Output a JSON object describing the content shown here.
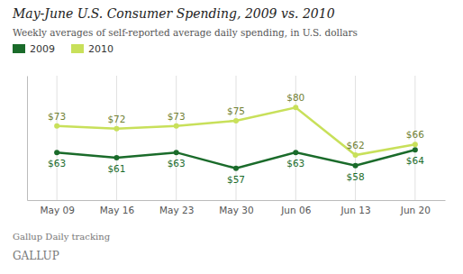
{
  "chart_data": {
    "type": "line",
    "title": "May-June U.S. Consumer Spending, 2009 vs. 2010",
    "subtitle": "Weekly averages of self-reported average daily spending, in U.S. dollars",
    "categories": [
      "May 09",
      "May 16",
      "May 23",
      "May 30",
      "Jun 06",
      "Jun 13",
      "Jun 20"
    ],
    "series": [
      {
        "name": "2009",
        "color": "#1a6b2a",
        "values": [
          63,
          61,
          63,
          57,
          63,
          58,
          64
        ],
        "value_labels": [
          "$63",
          "$61",
          "$63",
          "$57",
          "$63",
          "$58",
          "$64"
        ]
      },
      {
        "name": "2010",
        "color": "#c8e05a",
        "values": [
          73,
          72,
          73,
          75,
          80,
          62,
          66
        ],
        "value_labels": [
          "$73",
          "$72",
          "$73",
          "$75",
          "$80",
          "$62",
          "$66"
        ]
      }
    ],
    "ylim": [
      45,
      92
    ],
    "grid": true,
    "legend": "top-left",
    "data_labels": true,
    "tick_labels": "x",
    "marker": "circle",
    "annotations": [
      "Gallup Daily tracking",
      "GALLUP"
    ]
  }
}
